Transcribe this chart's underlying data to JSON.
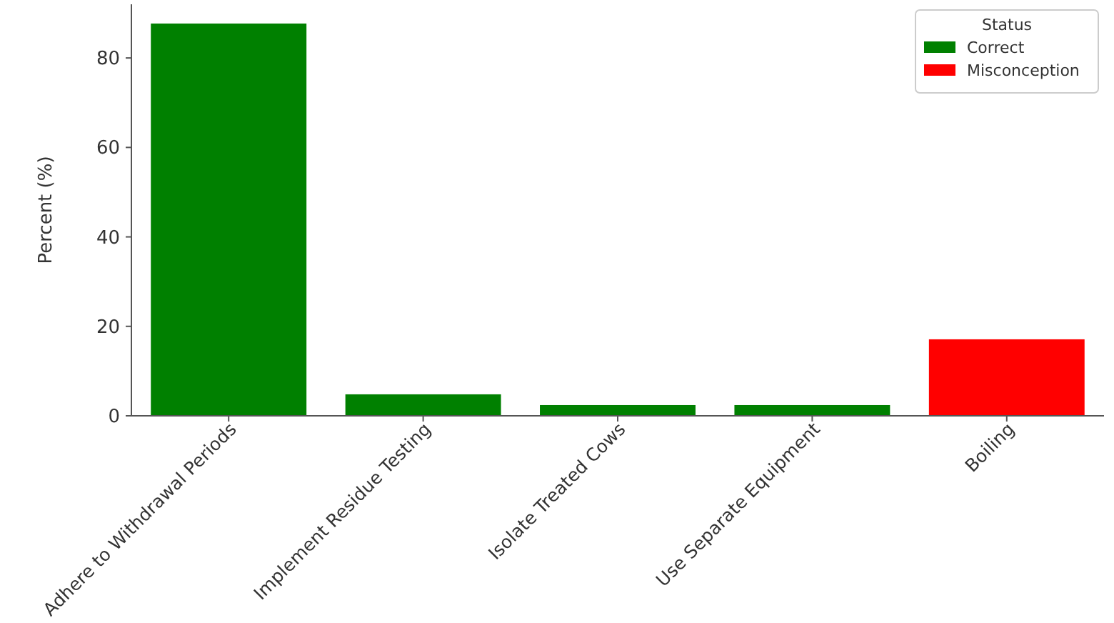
{
  "chart_data": {
    "type": "bar",
    "ylabel": "Percent (%)",
    "legend_title": "Status",
    "legend": "top right",
    "categories": [
      "Adhere to Withdrawal Periods",
      "Implement Residue Testing",
      "Isolate Treated Cows",
      "Use Separate Equipment",
      "Boiling"
    ],
    "series": [
      {
        "name": "Correct",
        "color": "#008000",
        "values": [
          87.7,
          4.8,
          2.4,
          2.4,
          null
        ]
      },
      {
        "name": "Misconception",
        "color": "#ff0000",
        "values": [
          null,
          null,
          null,
          null,
          17.1
        ]
      }
    ],
    "ylim": [
      0,
      92
    ],
    "yticks": [
      0,
      20,
      40,
      60,
      80
    ]
  }
}
